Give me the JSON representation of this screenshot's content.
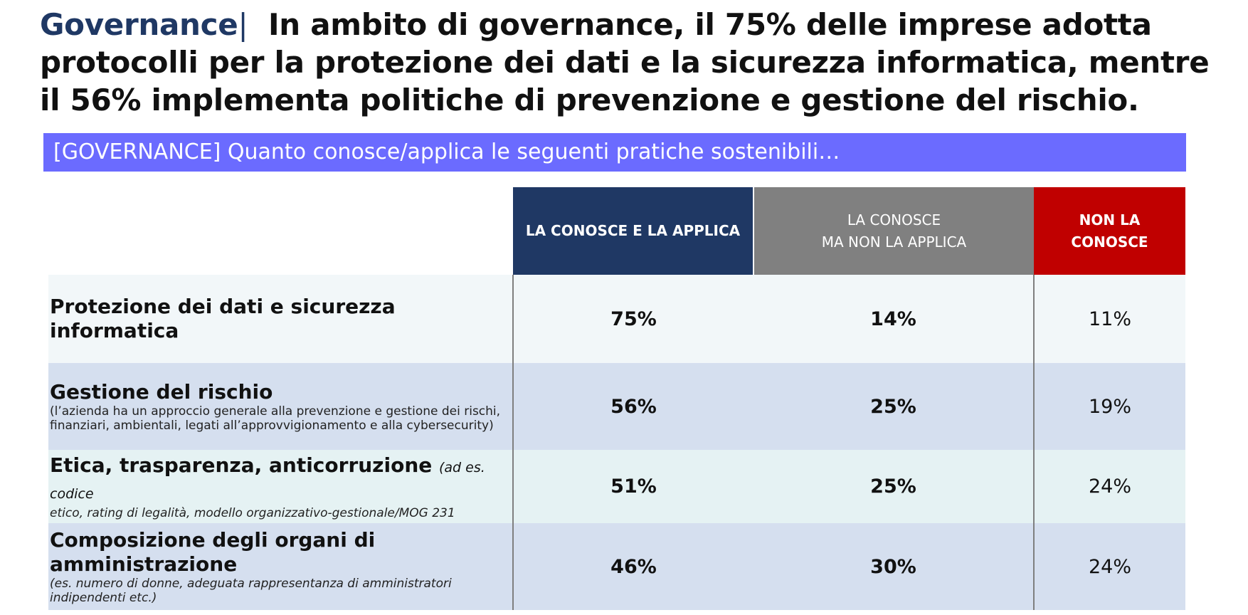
{
  "title": {
    "keyword": "Governance",
    "separator": "|",
    "text": "In ambito di governance, il 75% delle imprese adotta protocolli per la protezione dei dati e la sicurezza informatica, mentre il 56% implementa politiche di prevenzione e gestione del rischio."
  },
  "banner": "[GOVERNANCE] Quanto conosce/applica le seguenti pratiche sostenibili…",
  "columns": {
    "applies": "LA CONOSCE E LA APPLICA",
    "knows_line1": "LA CONOSCE",
    "knows_line2": "MA NON LA APPLICA",
    "unknown_line1": "NON LA",
    "unknown_line2": "CONOSCE"
  },
  "colors": {
    "title_keyword": "#1f3864",
    "banner": "#6b6bff",
    "col_applies": "#1f3864",
    "col_knows": "#808080",
    "col_unknown": "#c00000"
  },
  "rows": [
    {
      "label": "Protezione dei dati e sicurezza informatica",
      "note": "",
      "applies": "75%",
      "knows": "14%",
      "unknown": "11%"
    },
    {
      "label": "Gestione del rischio",
      "note": "(l’azienda ha un approccio generale alla prevenzione e gestione dei rischi, finanziari, ambientali, legati all’approvvigionamento e alla cybersecurity)",
      "applies": "56%",
      "knows": "25%",
      "unknown": "19%"
    },
    {
      "label": "Etica, trasparenza, anticorruzione",
      "note_inline": "(ad es. codice",
      "note": "etico, rating di legalità, modello organizzativo-gestionale/MOG 231",
      "applies": "51%",
      "knows": "25%",
      "unknown": "24%"
    },
    {
      "label": "Composizione degli organi di amministrazione",
      "note": "(es. numero di donne, adeguata rappresentanza di amministratori indipendenti etc.)",
      "applies": "46%",
      "knows": "30%",
      "unknown": "24%"
    }
  ]
}
